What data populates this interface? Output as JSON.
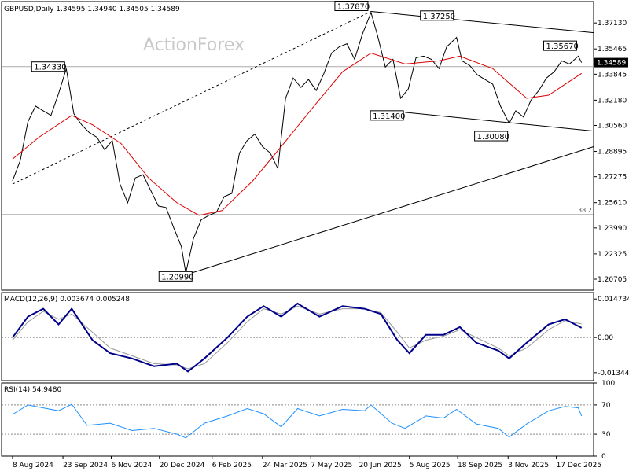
{
  "chart_data": [
    {
      "type": "line",
      "panel": "price",
      "title": "GBPUSD,Daily  1.34595  1.34940  1.34505  1.34589",
      "watermark": "ActionForex",
      "xlabel": "",
      "ylabel": "",
      "ylim": [
        1.2,
        1.385
      ],
      "grid": false,
      "y_ticks": [
        "1.37130",
        "1.35465",
        "1.33845",
        "1.32180",
        "1.30560",
        "1.28895",
        "1.27275",
        "1.25610",
        "1.23990",
        "1.22325",
        "1.20705"
      ],
      "current_price_label": "1.34589",
      "price_level_line": {
        "value": 1.3433
      },
      "fib_level": {
        "label": "38.2",
        "value": 1.2483
      },
      "annotations": [
        {
          "label": "1.34330",
          "date": "2024-09-26",
          "value": 1.3433
        },
        {
          "label": "1.37870",
          "date": "2025-07-01",
          "value": 1.3787
        },
        {
          "label": "1.37250",
          "date": "2025-09-17",
          "value": 1.3725
        },
        {
          "label": "1.35670",
          "date": "2026-01-06",
          "value": 1.3567
        },
        {
          "label": "1.31400",
          "date": "2025-08-01",
          "value": 1.314
        },
        {
          "label": "1.30080",
          "date": "2025-11-04",
          "value": 1.3008
        },
        {
          "label": "1.20990",
          "date": "2025-01-13",
          "value": 1.2099
        }
      ],
      "trendlines": [
        {
          "style": "dashed",
          "from": [
            "2024-08-08",
            1.268
          ],
          "to": [
            "2025-07-01",
            1.3787
          ]
        },
        {
          "style": "solid",
          "from": [
            "2025-01-13",
            1.2099
          ],
          "to": [
            "2026-01-20",
            1.292
          ]
        },
        {
          "style": "solid",
          "from": [
            "2025-07-01",
            1.3787
          ],
          "to": [
            "2026-01-20",
            1.365
          ]
        },
        {
          "style": "solid",
          "from": [
            "2025-08-01",
            1.314
          ],
          "to": [
            "2026-01-20",
            1.302
          ]
        }
      ],
      "series": [
        {
          "name": "",
          "color": "#000000",
          "values": [
            [
              "2024-08-08",
              1.27
            ],
            [
              "2024-08-15",
              1.283
            ],
            [
              "2024-08-22",
              1.308
            ],
            [
              "2024-08-29",
              1.318
            ],
            [
              "2024-09-05",
              1.315
            ],
            [
              "2024-09-12",
              1.312
            ],
            [
              "2024-09-19",
              1.326
            ],
            [
              "2024-09-26",
              1.342
            ],
            [
              "2024-10-03",
              1.313
            ],
            [
              "2024-10-10",
              1.306
            ],
            [
              "2024-10-17",
              1.301
            ],
            [
              "2024-10-24",
              1.298
            ],
            [
              "2024-10-31",
              1.29
            ],
            [
              "2024-11-07",
              1.296
            ],
            [
              "2024-11-14",
              1.268
            ],
            [
              "2024-11-21",
              1.256
            ],
            [
              "2024-11-28",
              1.272
            ],
            [
              "2024-12-05",
              1.274
            ],
            [
              "2024-12-12",
              1.264
            ],
            [
              "2024-12-19",
              1.254
            ],
            [
              "2024-12-26",
              1.253
            ],
            [
              "2025-01-02",
              1.24
            ],
            [
              "2025-01-09",
              1.228
            ],
            [
              "2025-01-13",
              1.211
            ],
            [
              "2025-01-20",
              1.233
            ],
            [
              "2025-01-27",
              1.245
            ],
            [
              "2025-02-03",
              1.248
            ],
            [
              "2025-02-10",
              1.25
            ],
            [
              "2025-02-17",
              1.26
            ],
            [
              "2025-02-24",
              1.262
            ],
            [
              "2025-03-03",
              1.288
            ],
            [
              "2025-03-10",
              1.296
            ],
            [
              "2025-03-17",
              1.3
            ],
            [
              "2025-03-24",
              1.292
            ],
            [
              "2025-03-31",
              1.288
            ],
            [
              "2025-04-07",
              1.278
            ],
            [
              "2025-04-14",
              1.323
            ],
            [
              "2025-04-21",
              1.336
            ],
            [
              "2025-04-28",
              1.33
            ],
            [
              "2025-05-05",
              1.335
            ],
            [
              "2025-05-12",
              1.328
            ],
            [
              "2025-05-19",
              1.339
            ],
            [
              "2025-05-26",
              1.352
            ],
            [
              "2025-06-02",
              1.356
            ],
            [
              "2025-06-09",
              1.358
            ],
            [
              "2025-06-16",
              1.348
            ],
            [
              "2025-06-23",
              1.364
            ],
            [
              "2025-07-01",
              1.378
            ],
            [
              "2025-07-07",
              1.363
            ],
            [
              "2025-07-14",
              1.343
            ],
            [
              "2025-07-21",
              1.348
            ],
            [
              "2025-07-28",
              1.323
            ],
            [
              "2025-08-04",
              1.329
            ],
            [
              "2025-08-11",
              1.349
            ],
            [
              "2025-08-18",
              1.35
            ],
            [
              "2025-08-25",
              1.348
            ],
            [
              "2025-09-01",
              1.342
            ],
            [
              "2025-09-08",
              1.356
            ],
            [
              "2025-09-17",
              1.362
            ],
            [
              "2025-09-22",
              1.347
            ],
            [
              "2025-09-29",
              1.344
            ],
            [
              "2025-10-06",
              1.338
            ],
            [
              "2025-10-13",
              1.335
            ],
            [
              "2025-10-20",
              1.332
            ],
            [
              "2025-10-27",
              1.318
            ],
            [
              "2025-11-04",
              1.307
            ],
            [
              "2025-11-10",
              1.315
            ],
            [
              "2025-11-17",
              1.311
            ],
            [
              "2025-11-24",
              1.322
            ],
            [
              "2025-12-01",
              1.328
            ],
            [
              "2025-12-08",
              1.336
            ],
            [
              "2025-12-15",
              1.34
            ],
            [
              "2025-12-22",
              1.347
            ],
            [
              "2025-12-29",
              1.345
            ],
            [
              "2026-01-06",
              1.35
            ],
            [
              "2026-01-09",
              1.3459
            ]
          ]
        },
        {
          "name": "",
          "color": "#dd0000",
          "values": [
            [
              "2024-08-08",
              1.284
            ],
            [
              "2024-09-01",
              1.298
            ],
            [
              "2024-10-01",
              1.312
            ],
            [
              "2024-10-20",
              1.306
            ],
            [
              "2024-11-15",
              1.294
            ],
            [
              "2024-12-10",
              1.272
            ],
            [
              "2025-01-05",
              1.256
            ],
            [
              "2025-01-25",
              1.248
            ],
            [
              "2025-02-15",
              1.251
            ],
            [
              "2025-03-15",
              1.27
            ],
            [
              "2025-04-10",
              1.292
            ],
            [
              "2025-05-10",
              1.318
            ],
            [
              "2025-06-05",
              1.34
            ],
            [
              "2025-07-01",
              1.352
            ],
            [
              "2025-08-01",
              1.345
            ],
            [
              "2025-09-01",
              1.347
            ],
            [
              "2025-09-20",
              1.35
            ],
            [
              "2025-10-20",
              1.342
            ],
            [
              "2025-11-20",
              1.323
            ],
            [
              "2025-12-10",
              1.325
            ],
            [
              "2026-01-09",
              1.339
            ]
          ]
        }
      ]
    },
    {
      "type": "line",
      "panel": "macd",
      "title": "MACD(12,26,9) 0.003674 0.005248",
      "xlabel": "",
      "ylabel": "",
      "ylim": [
        -0.0165,
        0.0172
      ],
      "grid": false,
      "y_ticks": [
        "0.014734",
        "0.00",
        "-0.013442"
      ],
      "zero_line": 0.0,
      "series": [
        {
          "name": "",
          "color": "#00008b",
          "values": [
            [
              "2024-08-08",
              0.0
            ],
            [
              "2024-08-22",
              0.008
            ],
            [
              "2024-09-05",
              0.011
            ],
            [
              "2024-09-19",
              0.005
            ],
            [
              "2024-10-01",
              0.011
            ],
            [
              "2024-10-20",
              -0.001
            ],
            [
              "2024-11-05",
              -0.006
            ],
            [
              "2024-11-25",
              -0.008
            ],
            [
              "2024-12-15",
              -0.011
            ],
            [
              "2025-01-05",
              -0.01
            ],
            [
              "2025-01-15",
              -0.013
            ],
            [
              "2025-01-30",
              -0.008
            ],
            [
              "2025-02-20",
              0.0
            ],
            [
              "2025-03-10",
              0.008
            ],
            [
              "2025-03-25",
              0.012
            ],
            [
              "2025-04-10",
              0.008
            ],
            [
              "2025-04-25",
              0.013
            ],
            [
              "2025-05-15",
              0.008
            ],
            [
              "2025-06-05",
              0.012
            ],
            [
              "2025-06-25",
              0.011
            ],
            [
              "2025-07-10",
              0.009
            ],
            [
              "2025-07-25",
              -0.001
            ],
            [
              "2025-08-05",
              -0.006
            ],
            [
              "2025-08-20",
              0.001
            ],
            [
              "2025-09-05",
              0.001
            ],
            [
              "2025-09-20",
              0.004
            ],
            [
              "2025-10-05",
              -0.002
            ],
            [
              "2025-10-25",
              -0.005
            ],
            [
              "2025-11-04",
              -0.008
            ],
            [
              "2025-11-20",
              -0.002
            ],
            [
              "2025-12-10",
              0.005
            ],
            [
              "2025-12-25",
              0.007
            ],
            [
              "2026-01-09",
              0.0037
            ]
          ]
        },
        {
          "name": "",
          "color": "#999999",
          "values": [
            [
              "2024-08-08",
              -0.001
            ],
            [
              "2024-08-22",
              0.006
            ],
            [
              "2024-09-05",
              0.01
            ],
            [
              "2024-09-19",
              0.007
            ],
            [
              "2024-10-01",
              0.009
            ],
            [
              "2024-10-20",
              0.002
            ],
            [
              "2024-11-05",
              -0.004
            ],
            [
              "2024-11-25",
              -0.007
            ],
            [
              "2024-12-15",
              -0.01
            ],
            [
              "2025-01-05",
              -0.0105
            ],
            [
              "2025-01-15",
              -0.012
            ],
            [
              "2025-01-30",
              -0.01
            ],
            [
              "2025-02-20",
              -0.002
            ],
            [
              "2025-03-10",
              0.006
            ],
            [
              "2025-03-25",
              0.011
            ],
            [
              "2025-04-10",
              0.009
            ],
            [
              "2025-04-25",
              0.012
            ],
            [
              "2025-05-15",
              0.009
            ],
            [
              "2025-06-05",
              0.011
            ],
            [
              "2025-06-25",
              0.011
            ],
            [
              "2025-07-10",
              0.0095
            ],
            [
              "2025-07-25",
              0.002
            ],
            [
              "2025-08-05",
              -0.004
            ],
            [
              "2025-08-20",
              -0.001
            ],
            [
              "2025-09-05",
              0.0005
            ],
            [
              "2025-09-20",
              0.003
            ],
            [
              "2025-10-05",
              0.0
            ],
            [
              "2025-10-25",
              -0.004
            ],
            [
              "2025-11-04",
              -0.007
            ],
            [
              "2025-11-20",
              -0.004
            ],
            [
              "2025-12-10",
              0.003
            ],
            [
              "2025-12-25",
              0.0065
            ],
            [
              "2026-01-09",
              0.0052
            ]
          ]
        }
      ]
    },
    {
      "type": "line",
      "panel": "rsi",
      "title": "RSI(14) 54.9480",
      "xlabel": "",
      "ylabel": "",
      "ylim": [
        0,
        100
      ],
      "grid": false,
      "y_ticks": [
        "100",
        "70",
        "30",
        "0"
      ],
      "levels": [
        70,
        30
      ],
      "series": [
        {
          "name": "",
          "color": "#1e90ff",
          "values": [
            [
              "2024-08-08",
              57
            ],
            [
              "2024-08-22",
              70
            ],
            [
              "2024-09-05",
              66
            ],
            [
              "2024-09-19",
              62
            ],
            [
              "2024-10-01",
              71
            ],
            [
              "2024-10-15",
              42
            ],
            [
              "2024-11-05",
              45
            ],
            [
              "2024-11-25",
              35
            ],
            [
              "2024-12-15",
              38
            ],
            [
              "2025-01-05",
              30
            ],
            [
              "2025-01-13",
              25
            ],
            [
              "2025-01-30",
              45
            ],
            [
              "2025-02-20",
              55
            ],
            [
              "2025-03-10",
              65
            ],
            [
              "2025-03-25",
              58
            ],
            [
              "2025-04-10",
              40
            ],
            [
              "2025-04-25",
              65
            ],
            [
              "2025-05-15",
              55
            ],
            [
              "2025-06-05",
              64
            ],
            [
              "2025-06-25",
              62
            ],
            [
              "2025-07-01",
              70
            ],
            [
              "2025-07-20",
              45
            ],
            [
              "2025-08-01",
              38
            ],
            [
              "2025-08-20",
              55
            ],
            [
              "2025-09-05",
              52
            ],
            [
              "2025-09-17",
              64
            ],
            [
              "2025-10-05",
              44
            ],
            [
              "2025-10-25",
              38
            ],
            [
              "2025-11-04",
              26
            ],
            [
              "2025-11-20",
              44
            ],
            [
              "2025-12-10",
              62
            ],
            [
              "2025-12-25",
              68
            ],
            [
              "2026-01-06",
              66
            ],
            [
              "2026-01-09",
              54.948
            ]
          ]
        }
      ]
    }
  ],
  "x_ticks": [
    {
      "label": "8 Aug 2024",
      "date": "2024-08-08"
    },
    {
      "label": "23 Sep 2024",
      "date": "2024-09-23"
    },
    {
      "label": "6 Nov 2024",
      "date": "2024-11-06"
    },
    {
      "label": "20 Dec 2024",
      "date": "2024-12-20"
    },
    {
      "label": "6 Feb 2025",
      "date": "2025-02-06"
    },
    {
      "label": "24 Mar 2025",
      "date": "2025-03-24"
    },
    {
      "label": "7 May 2025",
      "date": "2025-05-07"
    },
    {
      "label": "20 Jun 2025",
      "date": "2025-06-20"
    },
    {
      "label": "5 Aug 2025",
      "date": "2025-08-05"
    },
    {
      "label": "18 Sep 2025",
      "date": "2025-09-18"
    },
    {
      "label": "3 Nov 2025",
      "date": "2025-11-03"
    },
    {
      "label": "17 Dec 2025",
      "date": "2025-12-17"
    }
  ]
}
